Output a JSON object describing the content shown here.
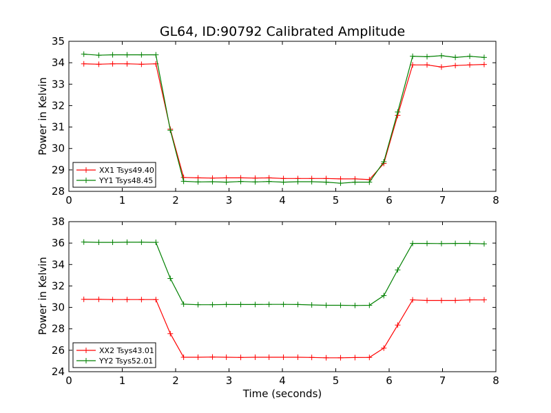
{
  "title": "GL64, ID:90792 Calibrated Amplitude",
  "chart_data": [
    {
      "type": "line",
      "ylabel": "Power in Kelvin",
      "xlabel": "",
      "xlim": [
        0,
        8
      ],
      "ylim": [
        28,
        35
      ],
      "xticks": [
        "0",
        "1",
        "2",
        "3",
        "4",
        "5",
        "6",
        "7",
        "8"
      ],
      "yticks": [
        "28",
        "29",
        "30",
        "31",
        "32",
        "33",
        "34",
        "35"
      ],
      "legend_position": "lower-left",
      "x": [
        0.28,
        0.56,
        0.82,
        1.09,
        1.36,
        1.63,
        1.9,
        2.15,
        2.42,
        2.69,
        2.95,
        3.22,
        3.49,
        3.75,
        4.02,
        4.29,
        4.55,
        4.82,
        5.09,
        5.36,
        5.63,
        5.9,
        6.16,
        6.44,
        6.71,
        6.98,
        7.24,
        7.51,
        7.78
      ],
      "series": [
        {
          "name": "XX1 Tsys49.40",
          "color": "#ff0000",
          "values": [
            33.95,
            33.93,
            33.95,
            33.95,
            33.93,
            33.95,
            30.9,
            28.65,
            28.63,
            28.62,
            28.63,
            28.63,
            28.62,
            28.63,
            28.6,
            28.6,
            28.6,
            28.6,
            28.58,
            28.58,
            28.55,
            29.3,
            31.55,
            33.9,
            33.9,
            33.8,
            33.87,
            33.9,
            33.92
          ]
        },
        {
          "name": "YY1 Tsys48.45",
          "color": "#008000",
          "values": [
            34.4,
            34.35,
            34.37,
            34.37,
            34.37,
            34.37,
            30.85,
            28.47,
            28.44,
            28.45,
            28.43,
            28.46,
            28.44,
            28.46,
            28.43,
            28.45,
            28.45,
            28.43,
            28.38,
            28.43,
            28.43,
            29.38,
            31.7,
            34.3,
            34.28,
            34.33,
            34.25,
            34.3,
            34.25
          ]
        }
      ]
    },
    {
      "type": "line",
      "ylabel": "Power in Kelvin",
      "xlabel": "Time (seconds)",
      "xlim": [
        0,
        8
      ],
      "ylim": [
        24,
        38
      ],
      "xticks": [
        "0",
        "1",
        "2",
        "3",
        "4",
        "5",
        "6",
        "7",
        "8"
      ],
      "yticks": [
        "24",
        "26",
        "28",
        "30",
        "32",
        "34",
        "36",
        "38"
      ],
      "legend_position": "lower-left",
      "x": [
        0.28,
        0.56,
        0.82,
        1.09,
        1.36,
        1.63,
        1.9,
        2.15,
        2.42,
        2.69,
        2.95,
        3.22,
        3.49,
        3.75,
        4.02,
        4.29,
        4.55,
        4.82,
        5.09,
        5.36,
        5.63,
        5.9,
        6.16,
        6.44,
        6.71,
        6.98,
        7.24,
        7.51,
        7.78
      ],
      "series": [
        {
          "name": "XX2 Tsys43.01",
          "color": "#ff0000",
          "values": [
            30.75,
            30.75,
            30.73,
            30.73,
            30.73,
            30.73,
            27.55,
            25.35,
            25.35,
            25.37,
            25.35,
            25.33,
            25.35,
            25.35,
            25.35,
            25.35,
            25.33,
            25.3,
            25.3,
            25.32,
            25.33,
            26.2,
            28.35,
            30.7,
            30.65,
            30.65,
            30.65,
            30.7,
            30.7
          ]
        },
        {
          "name": "YY2 Tsys52.01",
          "color": "#008000",
          "values": [
            36.1,
            36.07,
            36.07,
            36.08,
            36.08,
            36.07,
            32.7,
            30.3,
            30.25,
            30.25,
            30.27,
            30.27,
            30.27,
            30.28,
            30.28,
            30.27,
            30.23,
            30.2,
            30.2,
            30.18,
            30.2,
            31.1,
            33.5,
            35.97,
            35.97,
            35.95,
            35.97,
            35.97,
            35.93
          ]
        }
      ]
    }
  ]
}
